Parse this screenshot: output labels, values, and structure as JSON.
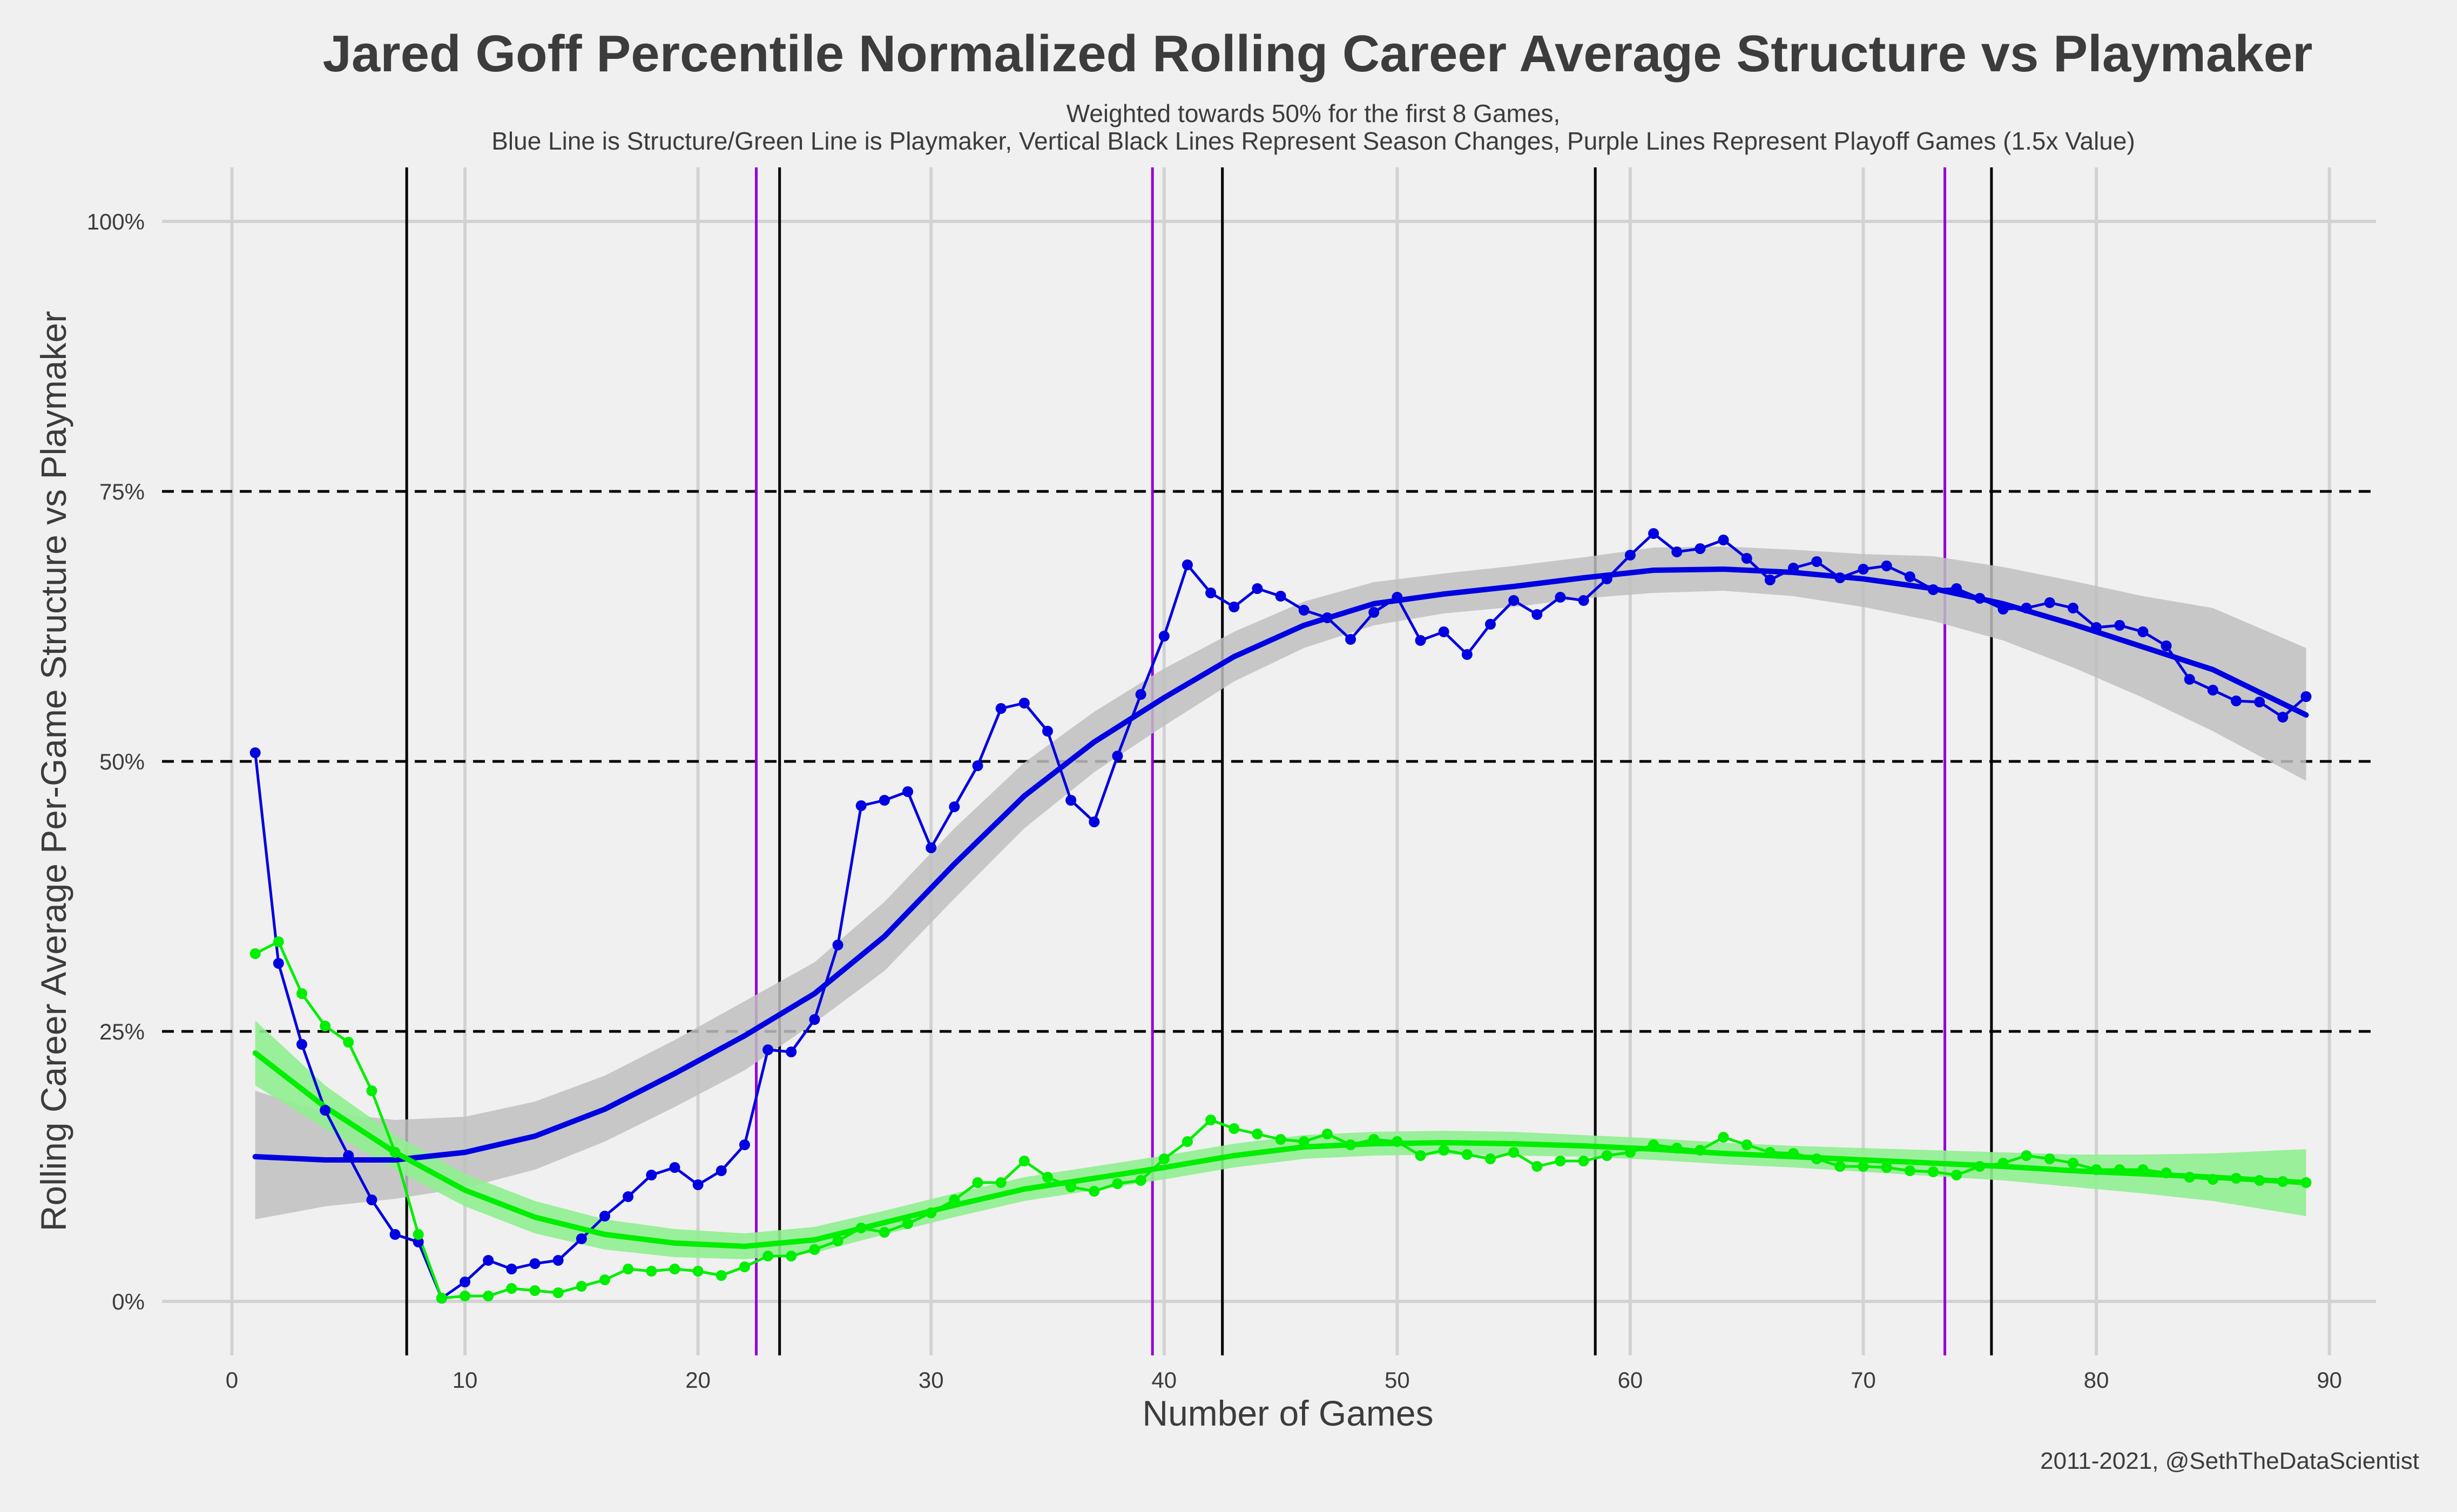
{
  "chart_data": {
    "type": "line",
    "title": "Jared Goff Percentile Normalized Rolling Career Average Structure vs Playmaker",
    "subtitle_lines": [
      "Weighted towards 50% for the first 8 Games,",
      "Blue Line is Structure/Green Line is Playmaker, Vertical Black Lines Represent Season Changes, Purple Lines Represent Playoff Games (1.5x Value)"
    ],
    "xlabel": "Number of Games",
    "ylabel": "Rolling Career Average Per-Game Structure vs Playmaker",
    "caption": "2011-2021, @SethTheDataScientist",
    "xlim": [
      -3,
      92
    ],
    "ylim": [
      -0.05,
      1.05
    ],
    "x_ticks": [
      0,
      10,
      20,
      30,
      40,
      50,
      60,
      70,
      80,
      90
    ],
    "x_tick_labels": [
      "0",
      "10",
      "20",
      "30",
      "40",
      "50",
      "60",
      "70",
      "80",
      "90"
    ],
    "y_ticks": [
      0,
      0.25,
      0.5,
      0.75,
      1.0
    ],
    "y_tick_labels": [
      "0%",
      "25%",
      "50%",
      "75%",
      "100%"
    ],
    "dashed_hlines": [
      0.25,
      0.5,
      0.75
    ],
    "season_change_lines": [
      7.5,
      23.5,
      42.5,
      58.5,
      75.5
    ],
    "playoff_lines": [
      22.5,
      39.5,
      73.5
    ],
    "grid": true,
    "colors": {
      "background": "#f0f0f0",
      "grid": "#d2d2d2",
      "structure": "#0000e0",
      "playmaker": "#00ee00",
      "structure_band": "#c0c0c0",
      "playmaker_band": "#90ee90",
      "season_line": "#000000",
      "playoff_line": "#9400d3",
      "text": "#3c3c3c"
    },
    "series": [
      {
        "key": "structure",
        "x": [
          1,
          2,
          3,
          4,
          5,
          6,
          7,
          8,
          9,
          10,
          11,
          12,
          13,
          14,
          15,
          16,
          17,
          18,
          19,
          20,
          21,
          22,
          23,
          24,
          25,
          26,
          27,
          28,
          29,
          30,
          31,
          32,
          33,
          34,
          35,
          36,
          37,
          38,
          39,
          40,
          41,
          42,
          43,
          44,
          45,
          46,
          47,
          48,
          49,
          50,
          51,
          52,
          53,
          54,
          55,
          56,
          57,
          58,
          59,
          60,
          61,
          62,
          63,
          64,
          65,
          66,
          67,
          68,
          69,
          70,
          71,
          72,
          73,
          74,
          75,
          76,
          77,
          78,
          79,
          80,
          81,
          82,
          83,
          84,
          85,
          86,
          87,
          88,
          89
        ],
        "values": [
          0.508,
          0.313,
          0.238,
          0.177,
          0.135,
          0.094,
          0.062,
          0.055,
          0.003,
          0.018,
          0.038,
          0.03,
          0.035,
          0.038,
          0.058,
          0.079,
          0.097,
          0.117,
          0.124,
          0.108,
          0.121,
          0.145,
          0.233,
          0.231,
          0.261,
          0.33,
          0.459,
          0.464,
          0.472,
          0.42,
          0.458,
          0.496,
          0.549,
          0.554,
          0.528,
          0.464,
          0.444,
          0.505,
          0.562,
          0.616,
          0.682,
          0.656,
          0.643,
          0.66,
          0.653,
          0.64,
          0.633,
          0.613,
          0.638,
          0.652,
          0.612,
          0.62,
          0.599,
          0.627,
          0.649,
          0.636,
          0.652,
          0.649,
          0.669,
          0.691,
          0.711,
          0.694,
          0.697,
          0.705,
          0.688,
          0.668,
          0.679,
          0.685,
          0.67,
          0.678,
          0.681,
          0.671,
          0.659,
          0.66,
          0.651,
          0.641,
          0.642,
          0.647,
          0.642,
          0.624,
          0.626,
          0.62,
          0.607,
          0.576,
          0.566,
          0.556,
          0.555,
          0.541,
          0.56
        ],
        "smooth_x": [
          1,
          4,
          7,
          10,
          13,
          16,
          19,
          22,
          25,
          28,
          31,
          34,
          37,
          40,
          43,
          46,
          49,
          52,
          55,
          58,
          61,
          64,
          67,
          70,
          73,
          76,
          79,
          82,
          85,
          89
        ],
        "smooth": [
          0.134,
          0.131,
          0.131,
          0.138,
          0.153,
          0.178,
          0.211,
          0.246,
          0.285,
          0.338,
          0.405,
          0.468,
          0.518,
          0.559,
          0.597,
          0.626,
          0.646,
          0.655,
          0.662,
          0.67,
          0.677,
          0.678,
          0.675,
          0.669,
          0.66,
          0.646,
          0.627,
          0.606,
          0.585,
          0.543
        ],
        "band_low": [
          0.076,
          0.088,
          0.095,
          0.105,
          0.122,
          0.148,
          0.18,
          0.214,
          0.258,
          0.306,
          0.373,
          0.438,
          0.49,
          0.533,
          0.574,
          0.605,
          0.626,
          0.637,
          0.643,
          0.651,
          0.656,
          0.658,
          0.653,
          0.643,
          0.63,
          0.612,
          0.587,
          0.559,
          0.528,
          0.482
        ],
        "band_high": [
          0.195,
          0.175,
          0.168,
          0.171,
          0.185,
          0.209,
          0.242,
          0.278,
          0.314,
          0.37,
          0.438,
          0.499,
          0.546,
          0.586,
          0.62,
          0.648,
          0.666,
          0.674,
          0.681,
          0.689,
          0.698,
          0.699,
          0.696,
          0.692,
          0.69,
          0.68,
          0.667,
          0.653,
          0.642,
          0.605
        ]
      },
      {
        "key": "playmaker",
        "x": [
          1,
          2,
          3,
          4,
          5,
          6,
          7,
          8,
          9,
          10,
          11,
          12,
          13,
          14,
          15,
          16,
          17,
          18,
          19,
          20,
          21,
          22,
          23,
          24,
          25,
          26,
          27,
          28,
          29,
          30,
          31,
          32,
          33,
          34,
          35,
          36,
          37,
          38,
          39,
          40,
          41,
          42,
          43,
          44,
          45,
          46,
          47,
          48,
          49,
          50,
          51,
          52,
          53,
          54,
          55,
          56,
          57,
          58,
          59,
          60,
          61,
          62,
          63,
          64,
          65,
          66,
          67,
          68,
          69,
          70,
          71,
          72,
          73,
          74,
          75,
          76,
          77,
          78,
          79,
          80,
          81,
          82,
          83,
          84,
          85,
          86,
          87,
          88,
          89
        ],
        "values": [
          0.322,
          0.333,
          0.285,
          0.255,
          0.24,
          0.195,
          0.138,
          0.062,
          0.003,
          0.005,
          0.005,
          0.012,
          0.01,
          0.008,
          0.014,
          0.02,
          0.03,
          0.028,
          0.03,
          0.028,
          0.024,
          0.032,
          0.042,
          0.042,
          0.048,
          0.056,
          0.068,
          0.064,
          0.072,
          0.082,
          0.094,
          0.11,
          0.11,
          0.13,
          0.115,
          0.106,
          0.102,
          0.109,
          0.112,
          0.132,
          0.148,
          0.168,
          0.16,
          0.155,
          0.15,
          0.148,
          0.155,
          0.145,
          0.15,
          0.148,
          0.135,
          0.14,
          0.136,
          0.132,
          0.138,
          0.125,
          0.13,
          0.13,
          0.135,
          0.138,
          0.145,
          0.142,
          0.14,
          0.152,
          0.145,
          0.138,
          0.137,
          0.132,
          0.125,
          0.125,
          0.124,
          0.121,
          0.12,
          0.117,
          0.125,
          0.128,
          0.135,
          0.132,
          0.128,
          0.122,
          0.122,
          0.122,
          0.119,
          0.115,
          0.113,
          0.114,
          0.112,
          0.111,
          0.11
        ],
        "smooth_x": [
          1,
          4,
          7,
          10,
          13,
          16,
          19,
          22,
          25,
          28,
          31,
          34,
          37,
          40,
          43,
          46,
          49,
          52,
          55,
          58,
          61,
          64,
          67,
          70,
          73,
          76,
          79,
          82,
          85,
          89
        ],
        "smooth": [
          0.23,
          0.18,
          0.138,
          0.103,
          0.078,
          0.062,
          0.054,
          0.051,
          0.057,
          0.073,
          0.089,
          0.104,
          0.114,
          0.124,
          0.135,
          0.143,
          0.146,
          0.147,
          0.146,
          0.144,
          0.141,
          0.137,
          0.134,
          0.131,
          0.128,
          0.125,
          0.121,
          0.118,
          0.115,
          0.11
        ],
        "band_low": [
          0.2,
          0.16,
          0.122,
          0.088,
          0.063,
          0.048,
          0.041,
          0.039,
          0.045,
          0.062,
          0.078,
          0.093,
          0.103,
          0.113,
          0.124,
          0.132,
          0.135,
          0.136,
          0.135,
          0.134,
          0.131,
          0.127,
          0.124,
          0.12,
          0.116,
          0.112,
          0.106,
          0.1,
          0.093,
          0.079
        ],
        "band_high": [
          0.26,
          0.2,
          0.154,
          0.118,
          0.093,
          0.076,
          0.067,
          0.063,
          0.069,
          0.084,
          0.1,
          0.115,
          0.125,
          0.135,
          0.146,
          0.154,
          0.157,
          0.158,
          0.157,
          0.154,
          0.151,
          0.147,
          0.144,
          0.142,
          0.14,
          0.138,
          0.136,
          0.136,
          0.137,
          0.141
        ]
      }
    ]
  }
}
